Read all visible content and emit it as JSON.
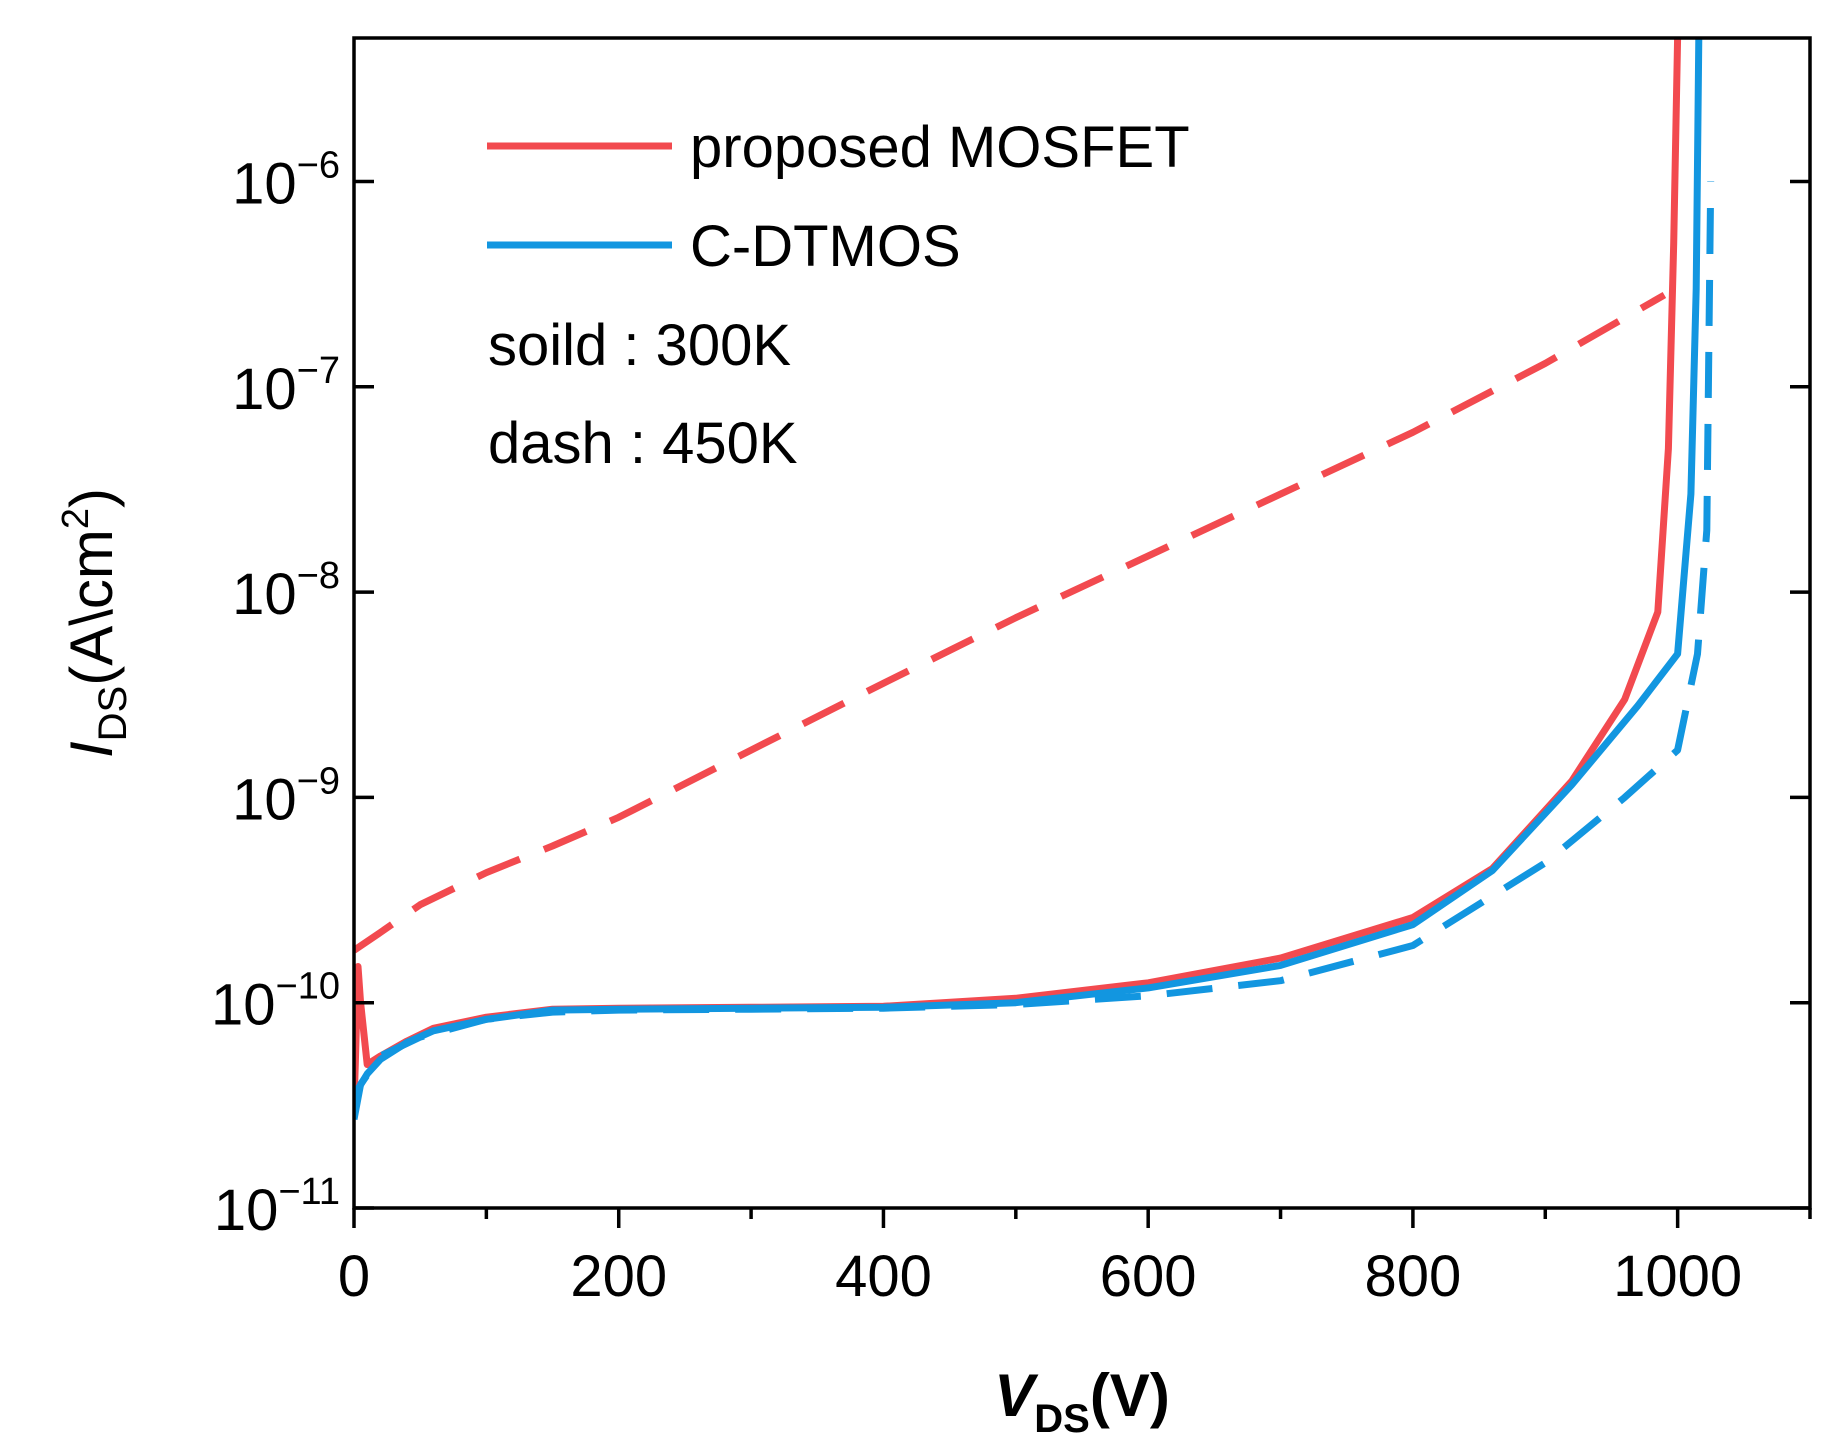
{
  "chart_data": {
    "type": "line",
    "title": "",
    "x_axis": {
      "label_main": "V",
      "label_sub": "DS",
      "label_unit": "(V)",
      "range": [
        0,
        1100
      ],
      "ticks": [
        0,
        200,
        400,
        600,
        800,
        1000
      ],
      "tick_labels": [
        "0",
        "200",
        "400",
        "600",
        "800",
        "1000"
      ],
      "minor_step": 100
    },
    "y_axis": {
      "label_main": "I",
      "label_sub": "DS",
      "label_unit_pre": "(A\\cm",
      "label_unit_sup": "2",
      "label_unit_post": ")",
      "scale": "log",
      "range": [
        1e-11,
        5e-06
      ],
      "ticks": [
        1e-11,
        1e-10,
        1e-09,
        1e-08,
        1e-07,
        1e-06
      ],
      "tick_base": [
        "10",
        "10",
        "10",
        "10",
        "10",
        "10"
      ],
      "tick_exponents": [
        "−11",
        "−10",
        "−9",
        "−8",
        "−7",
        "−6"
      ]
    },
    "legend": {
      "position": "top-left",
      "entries": [
        {
          "label": "proposed MOSFET",
          "color": "#f24a4f"
        },
        {
          "label": "C-DTMOS",
          "color": "#1296e0"
        }
      ]
    },
    "annotations": [
      "soild : 300K",
      "dash : 450K"
    ],
    "series": [
      {
        "name": "proposed MOSFET 300K",
        "color": "#f24a4f",
        "dash": false,
        "points": [
          [
            0,
            3.2e-11
          ],
          [
            1,
            5e-11
          ],
          [
            3,
            1.5e-10
          ],
          [
            5,
            1e-10
          ],
          [
            10,
            5e-11
          ],
          [
            20,
            5.5e-11
          ],
          [
            40,
            6.5e-11
          ],
          [
            60,
            7.5e-11
          ],
          [
            100,
            8.5e-11
          ],
          [
            150,
            9.3e-11
          ],
          [
            200,
            9.4e-11
          ],
          [
            300,
            9.5e-11
          ],
          [
            400,
            9.6e-11
          ],
          [
            500,
            1.05e-10
          ],
          [
            600,
            1.25e-10
          ],
          [
            700,
            1.65e-10
          ],
          [
            800,
            2.6e-10
          ],
          [
            860,
            4.5e-10
          ],
          [
            920,
            1.2e-09
          ],
          [
            960,
            3e-09
          ],
          [
            985,
            8e-09
          ],
          [
            993,
            5e-08
          ],
          [
            997,
            5e-07
          ],
          [
            1000,
            5e-06
          ]
        ]
      },
      {
        "name": "C-DTMOS 300K",
        "color": "#1296e0",
        "dash": false,
        "points": [
          [
            0,
            2.8e-11
          ],
          [
            3,
            3.8e-11
          ],
          [
            10,
            4.5e-11
          ],
          [
            20,
            5.3e-11
          ],
          [
            40,
            6.4e-11
          ],
          [
            60,
            7.3e-11
          ],
          [
            100,
            8.3e-11
          ],
          [
            150,
            9.2e-11
          ],
          [
            200,
            9.3e-11
          ],
          [
            300,
            9.4e-11
          ],
          [
            400,
            9.5e-11
          ],
          [
            500,
            1e-10
          ],
          [
            600,
            1.18e-10
          ],
          [
            700,
            1.52e-10
          ],
          [
            800,
            2.4e-10
          ],
          [
            860,
            4.4e-10
          ],
          [
            920,
            1.15e-09
          ],
          [
            970,
            2.8e-09
          ],
          [
            1000,
            5e-09
          ],
          [
            1010,
            3e-08
          ],
          [
            1014,
            3e-07
          ],
          [
            1016,
            5e-06
          ]
        ]
      },
      {
        "name": "proposed MOSFET 450K",
        "color": "#f24a4f",
        "dash": true,
        "points": [
          [
            0,
            1.8e-10
          ],
          [
            20,
            2.2e-10
          ],
          [
            50,
            3e-10
          ],
          [
            100,
            4.3e-10
          ],
          [
            150,
            5.8e-10
          ],
          [
            200,
            8e-10
          ],
          [
            300,
            1.7e-09
          ],
          [
            400,
            3.6e-09
          ],
          [
            500,
            7.5e-09
          ],
          [
            600,
            1.5e-08
          ],
          [
            700,
            3e-08
          ],
          [
            800,
            6e-08
          ],
          [
            900,
            1.3e-07
          ],
          [
            990,
            2.8e-07
          ]
        ]
      },
      {
        "name": "C-DTMOS 450K",
        "color": "#1296e0",
        "dash": true,
        "points": [
          [
            0,
            2.7e-11
          ],
          [
            5,
            4e-11
          ],
          [
            20,
            5.5e-11
          ],
          [
            50,
            6.8e-11
          ],
          [
            100,
            8.3e-11
          ],
          [
            150,
            9e-11
          ],
          [
            200,
            9.2e-11
          ],
          [
            300,
            9.3e-11
          ],
          [
            400,
            9.4e-11
          ],
          [
            500,
            9.8e-11
          ],
          [
            600,
            1.08e-10
          ],
          [
            700,
            1.28e-10
          ],
          [
            800,
            1.9e-10
          ],
          [
            900,
            4.8e-10
          ],
          [
            960,
            1e-09
          ],
          [
            1000,
            1.7e-09
          ],
          [
            1015,
            5e-09
          ],
          [
            1022,
            2e-08
          ],
          [
            1025,
            1e-06
          ]
        ]
      }
    ]
  }
}
